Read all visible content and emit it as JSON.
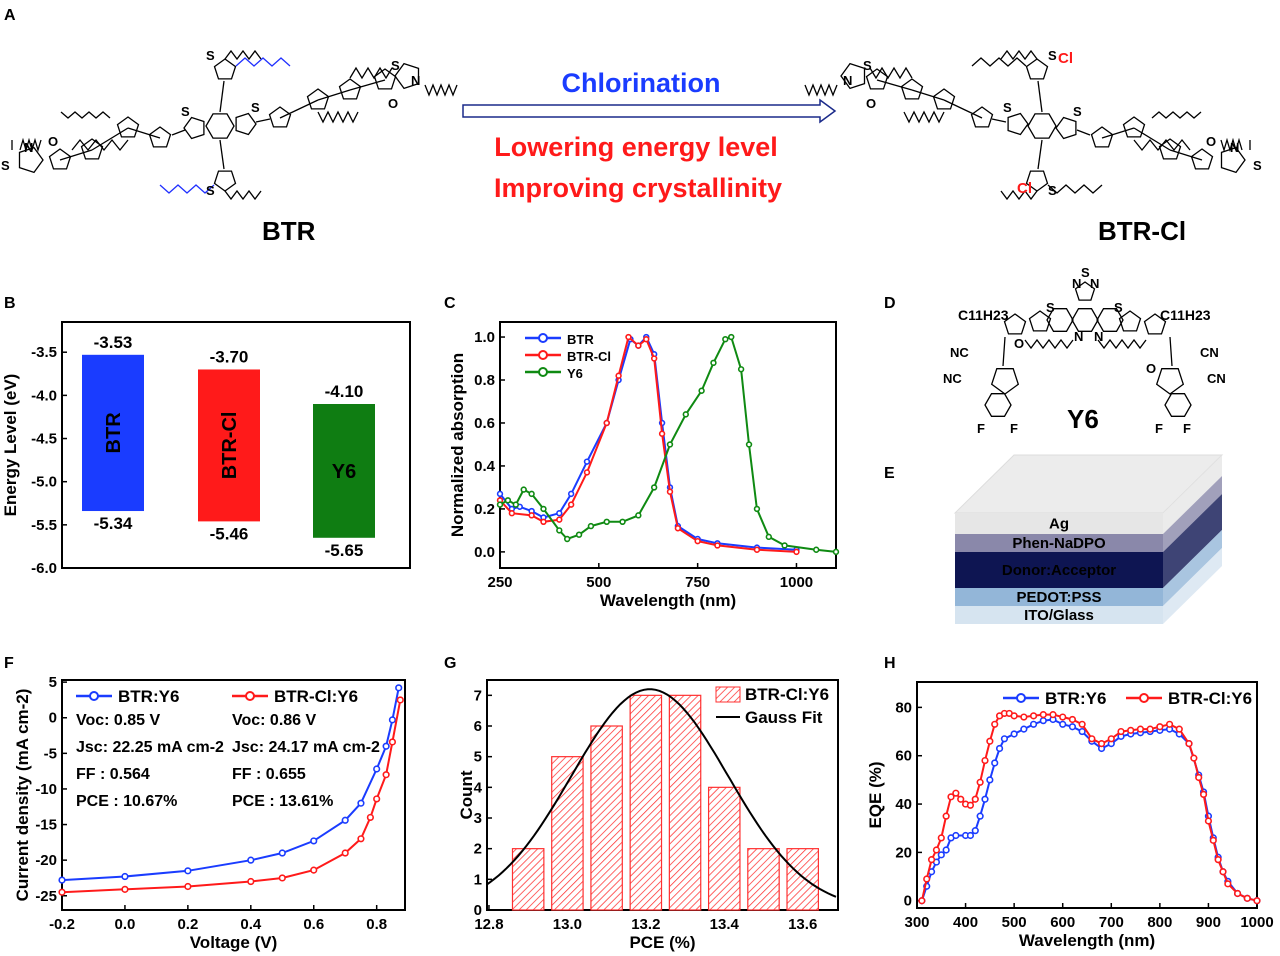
{
  "panel_letters": [
    "A",
    "B",
    "C",
    "D",
    "E",
    "F",
    "G",
    "H"
  ],
  "panel_a": {
    "left_molecule": "BTR",
    "right_molecule": "BTR-Cl",
    "arrow_label": "Chlorination",
    "effects": [
      "Lowering energy level",
      "Improving crystallinity"
    ],
    "chlorine_label": "Cl",
    "atom_labels": [
      "S",
      "N",
      "O"
    ],
    "colors": {
      "arrow_label": "#1a3cff",
      "effects": "#ff1a1a",
      "chlorine": "#ff1a1a",
      "side_chain_highlight": "#2030ff"
    }
  },
  "panel_d": {
    "molecule": "Y6",
    "substituent": "C11H23",
    "groups": [
      "NC",
      "CN",
      "F",
      "N",
      "S",
      "O"
    ]
  },
  "panel_e": {
    "layers": [
      {
        "label": "Ag",
        "color": "#e6e6e6"
      },
      {
        "label": "Phen-NaDPO",
        "color": "#8a88aa"
      },
      {
        "label": "Donor:Acceptor",
        "color": "#0e1552"
      },
      {
        "label": "PEDOT:PSS",
        "color": "#93b6d8"
      },
      {
        "label": "ITO/Glass",
        "color": "#d6e4f0"
      }
    ]
  },
  "chart_data": [
    {
      "panel": "B",
      "type": "bar",
      "ylabel": "Energy Level (eV)",
      "ylim": [
        -6.0,
        -3.15
      ],
      "yticks": [
        "-3.5",
        "-4.0",
        "-4.5",
        "-5.0",
        "-5.5",
        "-6.0"
      ],
      "bars": [
        {
          "name": "BTR",
          "top": -3.53,
          "bottom": -5.34,
          "top_label": "-3.53",
          "bottom_label": "-5.34",
          "color": "#1a3cff"
        },
        {
          "name": "BTR-Cl",
          "top": -3.7,
          "bottom": -5.46,
          "top_label": "-3.70",
          "bottom_label": "-5.46",
          "color": "#ff1a1a"
        },
        {
          "name": "Y6",
          "top": -4.1,
          "bottom": -5.65,
          "top_label": "-4.10",
          "bottom_label": "-5.65",
          "color": "#0f7d12"
        }
      ]
    },
    {
      "panel": "C",
      "type": "line",
      "xlabel": "Wavelength (nm)",
      "ylabel": "Normalized absorption",
      "xlim": [
        250,
        1100
      ],
      "ylim": [
        -0.075,
        1.07
      ],
      "xticks": [
        "250",
        "500",
        "750",
        "1000"
      ],
      "yticks": [
        "0.0",
        "0.2",
        "0.4",
        "0.6",
        "0.8",
        "1.0"
      ],
      "legend": "top-left",
      "series": [
        {
          "name": "BTR",
          "color": "#1a3cff",
          "x": [
            250,
            280,
            300,
            330,
            360,
            400,
            430,
            470,
            520,
            550,
            580,
            600,
            620,
            640,
            660,
            680,
            700,
            750,
            800,
            900,
            1000
          ],
          "y": [
            0.27,
            0.2,
            0.21,
            0.19,
            0.16,
            0.18,
            0.27,
            0.42,
            0.6,
            0.8,
            0.99,
            0.96,
            1.0,
            0.92,
            0.6,
            0.3,
            0.12,
            0.06,
            0.04,
            0.02,
            0.01
          ]
        },
        {
          "name": "BTR-Cl",
          "color": "#ff1a1a",
          "x": [
            250,
            280,
            330,
            360,
            400,
            430,
            470,
            520,
            550,
            575,
            600,
            620,
            640,
            660,
            680,
            700,
            750,
            800,
            900,
            1000
          ],
          "y": [
            0.24,
            0.18,
            0.17,
            0.14,
            0.15,
            0.22,
            0.37,
            0.6,
            0.82,
            1.0,
            0.96,
            0.99,
            0.9,
            0.55,
            0.28,
            0.11,
            0.05,
            0.03,
            0.01,
            0.0
          ]
        },
        {
          "name": "Y6",
          "color": "#0f8a12",
          "x": [
            250,
            270,
            290,
            310,
            330,
            360,
            400,
            420,
            450,
            480,
            520,
            560,
            600,
            640,
            680,
            720,
            760,
            790,
            820,
            835,
            860,
            880,
            900,
            930,
            970,
            1050,
            1100
          ],
          "y": [
            0.22,
            0.24,
            0.22,
            0.29,
            0.27,
            0.2,
            0.1,
            0.06,
            0.08,
            0.12,
            0.14,
            0.14,
            0.17,
            0.3,
            0.5,
            0.64,
            0.75,
            0.88,
            0.99,
            1.0,
            0.85,
            0.5,
            0.2,
            0.07,
            0.03,
            0.01,
            0.0
          ]
        }
      ]
    },
    {
      "panel": "F",
      "type": "line",
      "xlabel": "Voltage (V)",
      "ylabel": "Current density (mA cm-2)",
      "xlim": [
        -0.2,
        0.89
      ],
      "ylim": [
        -27,
        5.3
      ],
      "xticks": [
        "-0.2",
        "0.0",
        "0.2",
        "0.4",
        "0.6",
        "0.8"
      ],
      "yticks": [
        "5",
        "0",
        "-5",
        "-10",
        "-15",
        "-20",
        "-25"
      ],
      "legend": "top-left",
      "series": [
        {
          "name": "BTR:Y6",
          "color": "#1a3cff",
          "x": [
            -0.2,
            0,
            0.2,
            0.4,
            0.5,
            0.6,
            0.7,
            0.75,
            0.8,
            0.83,
            0.85,
            0.87
          ],
          "y": [
            -22.8,
            -22.3,
            -21.5,
            -20,
            -19,
            -17.3,
            -14.4,
            -12,
            -7.2,
            -4,
            -0.3,
            4.2
          ],
          "params": [
            "Voc: 0.85 V",
            "Jsc: 22.25 mA cm-2",
            "FF : 0.564",
            "PCE : 10.67%"
          ]
        },
        {
          "name": "BTR-Cl:Y6",
          "color": "#ff1a1a",
          "x": [
            -0.2,
            0,
            0.2,
            0.4,
            0.5,
            0.6,
            0.7,
            0.75,
            0.78,
            0.8,
            0.83,
            0.85,
            0.875
          ],
          "y": [
            -24.5,
            -24.1,
            -23.7,
            -23,
            -22.5,
            -21.4,
            -19,
            -17,
            -14,
            -11.4,
            -8,
            -3.4,
            2.5
          ],
          "params": [
            "Voc: 0.86 V",
            "Jsc: 24.17 mA cm-2",
            "FF : 0.655",
            "PCE : 13.61%"
          ]
        }
      ]
    },
    {
      "panel": "G",
      "type": "bar",
      "xlabel": "PCE (%)",
      "ylabel": "Count",
      "xlim": [
        12.795,
        13.69
      ],
      "ylim": [
        0,
        7.5
      ],
      "xticks": [
        "12.8",
        "13.0",
        "13.2",
        "13.4",
        "13.6"
      ],
      "yticks": [
        "0",
        "1",
        "2",
        "3",
        "4",
        "5",
        "6",
        "7"
      ],
      "legend": "top-right",
      "histogram": {
        "name": "BTR-Cl:Y6",
        "color": "#ff3030",
        "bin_centers": [
          12.9,
          13.0,
          13.1,
          13.2,
          13.3,
          13.4,
          13.5,
          13.6
        ],
        "counts": [
          2,
          5,
          6,
          7,
          7,
          4,
          2,
          2
        ],
        "bin_width": 0.08
      },
      "fit": {
        "name": "Gauss Fit",
        "amplitude": 7.2,
        "center": 13.21,
        "sigma": 0.2,
        "color": "#000000"
      }
    },
    {
      "panel": "H",
      "type": "line",
      "xlabel": "Wavelength (nm)",
      "ylabel": "EQE (%)",
      "xlim": [
        300,
        1000
      ],
      "ylim": [
        -3,
        90.5
      ],
      "xticks": [
        "300",
        "400",
        "500",
        "600",
        "700",
        "800",
        "900",
        "1000"
      ],
      "yticks": [
        "0",
        "20",
        "40",
        "60",
        "80"
      ],
      "legend": "top-right",
      "series": [
        {
          "name": "BTR:Y6",
          "color": "#1a3cff",
          "x": [
            310,
            320,
            330,
            340,
            350,
            360,
            370,
            380,
            400,
            410,
            420,
            430,
            440,
            450,
            460,
            470,
            480,
            500,
            520,
            540,
            560,
            580,
            600,
            620,
            640,
            660,
            680,
            700,
            720,
            740,
            760,
            780,
            800,
            820,
            840,
            860,
            880,
            890,
            900,
            910,
            920,
            930,
            940,
            960,
            980,
            1000
          ],
          "y": [
            0,
            6,
            12,
            16,
            19,
            21,
            26,
            27,
            27,
            27,
            29,
            35,
            42,
            50,
            57,
            63,
            67,
            69,
            71,
            73,
            74.5,
            75,
            73,
            72,
            70,
            66,
            63,
            65,
            68,
            69,
            69.5,
            70,
            70.5,
            71,
            69,
            65,
            52,
            45,
            35,
            26,
            18,
            12,
            8,
            3,
            1,
            0
          ]
        },
        {
          "name": "BTR-Cl:Y6",
          "color": "#ff1a1a",
          "x": [
            310,
            320,
            330,
            340,
            350,
            360,
            370,
            380,
            390,
            400,
            410,
            420,
            430,
            440,
            450,
            460,
            470,
            480,
            490,
            500,
            520,
            540,
            560,
            580,
            600,
            620,
            640,
            660,
            680,
            700,
            720,
            740,
            760,
            780,
            800,
            820,
            840,
            860,
            870,
            880,
            890,
            900,
            910,
            920,
            930,
            940,
            960,
            980,
            1000
          ],
          "y": [
            0,
            9,
            17,
            21,
            26,
            35,
            43,
            44.5,
            42,
            40,
            39.5,
            42,
            49,
            58,
            66,
            73,
            76.5,
            77.5,
            77.5,
            76.5,
            76,
            76.5,
            77,
            77,
            76,
            75,
            73,
            67,
            65,
            67,
            70,
            70.5,
            71,
            71,
            72,
            73,
            71,
            65,
            59,
            51,
            44,
            33,
            25,
            17,
            12,
            7,
            3,
            1,
            0
          ]
        }
      ]
    }
  ]
}
